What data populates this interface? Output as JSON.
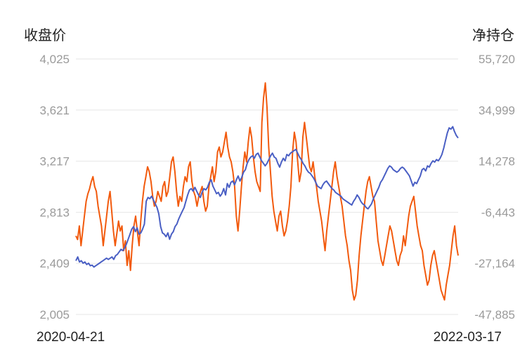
{
  "chart_data": {
    "type": "line",
    "left_axis_title": "收盘价",
    "right_axis_title": "净持仓",
    "x_start": "2020-04-21",
    "x_end": "2022-03-17",
    "left_ticks": [
      "4,025",
      "3,621",
      "3,217",
      "2,813",
      "2,409",
      "2,005"
    ],
    "right_ticks": [
      "55,720",
      "34,999",
      "14,278",
      "-6,443",
      "-27,164",
      "-47,885"
    ],
    "left_range": [
      2005,
      4025
    ],
    "right_range": [
      -47885,
      55720
    ],
    "grid": true,
    "series": [
      {
        "axis": "left",
        "color": "#4a5fc4",
        "values": [
          2430,
          2460,
          2420,
          2430,
          2410,
          2420,
          2400,
          2410,
          2390,
          2395,
          2380,
          2390,
          2400,
          2410,
          2420,
          2430,
          2440,
          2450,
          2440,
          2450,
          2460,
          2440,
          2470,
          2480,
          2500,
          2520,
          2510,
          2530,
          2560,
          2600,
          2640,
          2680,
          2700,
          2660,
          2690,
          2640,
          2650,
          2680,
          2720,
          2900,
          2930,
          2920,
          2940,
          2910,
          2880,
          2850,
          2800,
          2700,
          2650,
          2640,
          2620,
          2650,
          2600,
          2640,
          2660,
          2700,
          2720,
          2760,
          2790,
          2820,
          2850,
          2900,
          2950,
          2990,
          3000,
          2980,
          3010,
          2980,
          2950,
          2930,
          2970,
          3000,
          2990,
          3010,
          3050,
          3070,
          3020,
          2990,
          2960,
          2970,
          2940,
          2960,
          3000,
          2950,
          3040,
          3010,
          3050,
          3060,
          3030,
          3070,
          3100,
          3060,
          3090,
          3130,
          3150,
          3200,
          3230,
          3250,
          3260,
          3240,
          3270,
          3280,
          3250,
          3220,
          3200,
          3180,
          3200,
          3230,
          3260,
          3280,
          3250,
          3240,
          3200,
          3170,
          3210,
          3240,
          3220,
          3270,
          3260,
          3280,
          3290,
          3300,
          3310,
          3280,
          3250,
          3230,
          3200,
          3180,
          3150,
          3130,
          3120,
          3100,
          3080,
          3050,
          3020,
          3010,
          3000,
          3030,
          3050,
          3060,
          3040,
          3020,
          3000,
          2990,
          2970,
          2960,
          2950,
          2940,
          2920,
          2910,
          2900,
          2890,
          2880,
          2870,
          2900,
          2920,
          2950,
          2930,
          2900,
          2880,
          2870,
          2850,
          2840,
          2860,
          2880,
          2920,
          2950,
          2980,
          3010,
          3050,
          3070,
          3100,
          3130,
          3160,
          3180,
          3170,
          3150,
          3140,
          3130,
          3140,
          3160,
          3170,
          3160,
          3140,
          3120,
          3100,
          3060,
          3020,
          3050,
          3040,
          3070,
          3100,
          3150,
          3160,
          3140,
          3180,
          3170,
          3200,
          3220,
          3210,
          3230,
          3220,
          3240,
          3270,
          3320,
          3380,
          3440,
          3480,
          3470,
          3490,
          3450,
          3420,
          3400
        ]
      },
      {
        "axis": "right",
        "color": "#f25a0d",
        "values": [
          -16000,
          -17500,
          -12000,
          -20000,
          -14000,
          -8000,
          -2000,
          1000,
          3000,
          6000,
          8000,
          4000,
          2000,
          -4000,
          -8000,
          -12000,
          -20000,
          -14000,
          -8000,
          -2000,
          2000,
          -6000,
          -14000,
          -20000,
          -15000,
          -10000,
          -14000,
          -12000,
          -22000,
          -18000,
          -28000,
          -22000,
          -30000,
          -20000,
          -12000,
          -8000,
          -14000,
          -20000,
          -10000,
          -2000,
          4000,
          8000,
          12000,
          10000,
          6000,
          0,
          -4000,
          -2000,
          2000,
          0,
          -2000,
          4000,
          6000,
          0,
          2000,
          8000,
          14000,
          16000,
          10000,
          2000,
          -4000,
          0,
          -2000,
          4000,
          8000,
          6000,
          12000,
          14000,
          6000,
          2000,
          0,
          -4000,
          0,
          2000,
          4000,
          -2000,
          -6000,
          -4000,
          4000,
          8000,
          12000,
          6000,
          10000,
          18000,
          20000,
          16000,
          18000,
          22000,
          26000,
          20000,
          16000,
          14000,
          10000,
          4000,
          -8000,
          -14000,
          -6000,
          4000,
          12000,
          18000,
          14000,
          22000,
          28000,
          24000,
          16000,
          10000,
          6000,
          4000,
          2000,
          30000,
          40000,
          46000,
          36000,
          20000,
          10000,
          0,
          -6000,
          -10000,
          -14000,
          -8000,
          -6000,
          -12000,
          -16000,
          -14000,
          -10000,
          -4000,
          4000,
          18000,
          26000,
          22000,
          14000,
          6000,
          10000,
          24000,
          30000,
          24000,
          18000,
          12000,
          10000,
          14000,
          8000,
          4000,
          -2000,
          -6000,
          -10000,
          -16000,
          -22000,
          -14000,
          -8000,
          -2000,
          4000,
          10000,
          14000,
          8000,
          4000,
          0,
          -4000,
          -10000,
          -16000,
          -20000,
          -26000,
          -30000,
          -38000,
          -42000,
          -40000,
          -34000,
          -24000,
          -16000,
          -10000,
          -4000,
          2000,
          6000,
          8000,
          4000,
          0,
          -2000,
          -10000,
          -18000,
          -22000,
          -26000,
          -28000,
          -24000,
          -20000,
          -16000,
          -12000,
          -14000,
          -18000,
          -22000,
          -26000,
          -28000,
          -24000,
          -22000,
          -16000,
          -20000,
          -14000,
          -8000,
          -4000,
          -2000,
          0,
          -6000,
          -12000,
          -16000,
          -20000,
          -22000,
          -28000,
          -32000,
          -36000,
          -34000,
          -28000,
          -24000,
          -22000,
          -26000,
          -30000,
          -34000,
          -38000,
          -40000,
          -42000,
          -36000,
          -32000,
          -28000,
          -22000,
          -16000,
          -12000,
          -20000,
          -24000
        ]
      }
    ]
  }
}
